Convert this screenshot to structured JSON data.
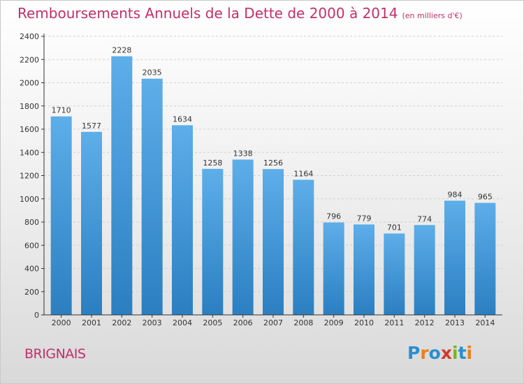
{
  "title": "Remboursements Annuels de la Dette de 2000 à 2014",
  "unit": "(en milliers d'€)",
  "commune": "BRIGNAIS",
  "logo": {
    "letters": [
      "P",
      "r",
      "o",
      "x",
      "i",
      "t",
      "i"
    ],
    "colors": [
      "#2a8fd0",
      "#e8821e",
      "#2a8fd0",
      "#d23a2a",
      "#7ab51d",
      "#2a8fd0",
      "#e8821e"
    ]
  },
  "colors": {
    "title": "#c0306a",
    "bar_top": "#5daee9",
    "bar_bottom": "#2b7fc1",
    "grid": "#cfcfcf",
    "axis": "#333333"
  },
  "chart_data": {
    "type": "bar",
    "title": "Remboursements Annuels de la Dette de 2000 à 2014",
    "subtitle": "(en milliers d'€)",
    "categories": [
      "2000",
      "2001",
      "2002",
      "2003",
      "2004",
      "2005",
      "2006",
      "2007",
      "2008",
      "2009",
      "2010",
      "2011",
      "2012",
      "2013",
      "2014"
    ],
    "values": [
      1710,
      1577,
      2228,
      2035,
      1634,
      1258,
      1338,
      1256,
      1164,
      796,
      779,
      701,
      774,
      984,
      965
    ],
    "yticks": [
      0,
      200,
      400,
      600,
      800,
      1000,
      1200,
      1400,
      1600,
      1800,
      2000,
      2200,
      2400
    ],
    "ylim": [
      0,
      2400
    ],
    "grid": true,
    "xlabel": "",
    "ylabel": ""
  }
}
